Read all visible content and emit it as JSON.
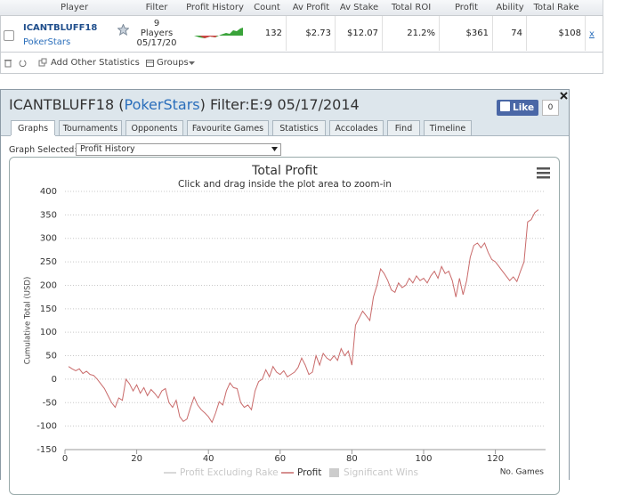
{
  "table": {
    "headers": [
      "Player",
      "Filter",
      "Profit History",
      "Count",
      "Av Profit",
      "Av Stake",
      "Total ROI",
      "Profit",
      "Ability",
      "Total Rake"
    ],
    "row": {
      "player": "ICANTBLUFF18",
      "site": "PokerStars",
      "filter": [
        "9",
        "Players",
        "05/17/20"
      ],
      "count": "132",
      "av_profit": "$2.73",
      "av_stake": "$12.07",
      "total_roi": "21.2%",
      "profit": "$361",
      "ability": "74",
      "total_rake": "$108",
      "remove": "x"
    }
  },
  "toolbar": {
    "add": "Add Other Statistics",
    "groups": "Groups"
  },
  "panel": {
    "title_parts": [
      "ICANTBLUFF18 (",
      "PokerStars",
      ") Filter:E:9 05/17/2014"
    ],
    "like": "Like",
    "like_count": "0",
    "tabs": [
      "Graphs",
      "Tournaments",
      "Opponents",
      "Favourite Games",
      "Statistics",
      "Accolades",
      "Find",
      "Timeline"
    ],
    "graph_label": "Graph Selected:",
    "graph_value": "Profit History"
  },
  "chart_data": {
    "type": "line",
    "title": "Total Profit",
    "subtitle": "Click and drag inside the plot area to zoom-in",
    "y_label": "Cumulative Total (USD)",
    "x_label": "No. Games",
    "xlim": [
      0,
      134
    ],
    "xticks": [
      0,
      20,
      40,
      60,
      80,
      100,
      120
    ],
    "ylim": [
      -150,
      400
    ],
    "yticks": [
      -150,
      -100,
      -50,
      0,
      50,
      100,
      150,
      200,
      250,
      300,
      350,
      400
    ],
    "grid": true,
    "series": [
      {
        "name": "Profit",
        "color": "#c96a6a",
        "x": [
          1,
          2,
          3,
          4,
          5,
          6,
          7,
          8,
          9,
          10,
          11,
          12,
          13,
          14,
          15,
          16,
          17,
          18,
          19,
          20,
          21,
          22,
          23,
          24,
          25,
          26,
          27,
          28,
          29,
          30,
          31,
          32,
          33,
          34,
          35,
          36,
          37,
          38,
          39,
          40,
          41,
          42,
          43,
          44,
          45,
          46,
          47,
          48,
          49,
          50,
          51,
          52,
          53,
          54,
          55,
          56,
          57,
          58,
          59,
          60,
          61,
          62,
          63,
          64,
          65,
          66,
          67,
          68,
          69,
          70,
          71,
          72,
          73,
          74,
          75,
          76,
          77,
          78,
          79,
          80,
          81,
          82,
          83,
          84,
          85,
          86,
          87,
          88,
          89,
          90,
          91,
          92,
          93,
          94,
          95,
          96,
          97,
          98,
          99,
          100,
          101,
          102,
          103,
          104,
          105,
          106,
          107,
          108,
          109,
          110,
          111,
          112,
          113,
          114,
          115,
          116,
          117,
          118,
          119,
          120,
          121,
          122,
          123,
          124,
          125,
          126,
          127,
          128,
          129,
          130,
          131,
          132
        ],
        "values": [
          27,
          22,
          18,
          22,
          12,
          17,
          10,
          8,
          0,
          -10,
          -20,
          -35,
          -50,
          -60,
          -40,
          -45,
          0,
          -10,
          -25,
          -12,
          -30,
          -18,
          -35,
          -22,
          -30,
          -40,
          -25,
          -20,
          -50,
          -60,
          -45,
          -80,
          -90,
          -85,
          -60,
          -38,
          -55,
          -65,
          -72,
          -80,
          -92,
          -72,
          -48,
          -55,
          -25,
          -8,
          -18,
          -20,
          -50,
          -60,
          -55,
          -65,
          -25,
          -5,
          0,
          20,
          5,
          27,
          15,
          10,
          18,
          5,
          10,
          15,
          25,
          45,
          30,
          10,
          15,
          50,
          30,
          55,
          45,
          40,
          50,
          40,
          65,
          50,
          60,
          30,
          115,
          130,
          145,
          135,
          125,
          175,
          200,
          235,
          225,
          210,
          190,
          185,
          205,
          195,
          200,
          215,
          205,
          220,
          210,
          215,
          205,
          220,
          230,
          215,
          240,
          225,
          230,
          210,
          175,
          215,
          180,
          210,
          260,
          285,
          290,
          280,
          290,
          270,
          255,
          250,
          240,
          230,
          220,
          210,
          218,
          208,
          230,
          250,
          335,
          340,
          355,
          361
        ]
      }
    ],
    "hidden_series": [
      {
        "name": "Profit Excluding Rake",
        "color": "#cccccc",
        "symbol": "line"
      },
      {
        "name": "Significant Wins",
        "color": "#cccccc",
        "symbol": "square"
      }
    ]
  }
}
